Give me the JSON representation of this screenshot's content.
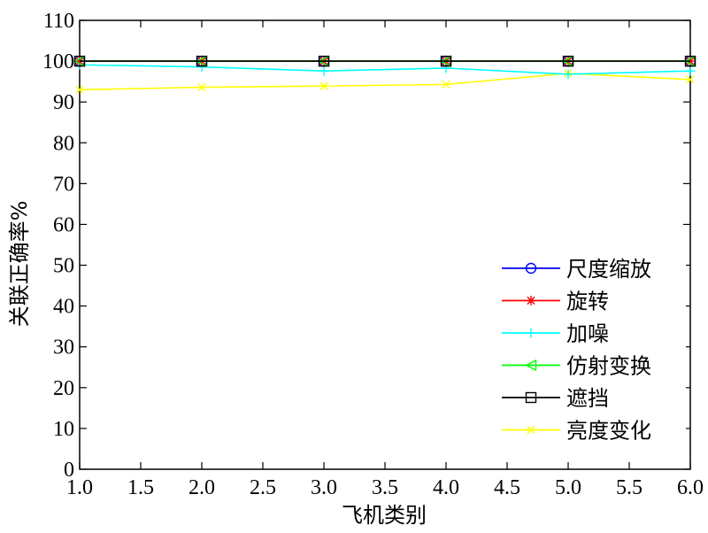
{
  "chart_data": {
    "type": "line",
    "xlabel": "飞机类别",
    "ylabel": "关联正确率%",
    "xlim": [
      1.0,
      6.0
    ],
    "ylim": [
      0,
      110
    ],
    "xticks": [
      "1.0",
      "1.5",
      "2.0",
      "2.5",
      "3.0",
      "3.5",
      "4.0",
      "4.5",
      "5.0",
      "5.5",
      "6.0"
    ],
    "yticks": [
      "0",
      "10",
      "20",
      "30",
      "40",
      "50",
      "60",
      "70",
      "80",
      "90",
      "100",
      "110"
    ],
    "legend_position": "bottom-right",
    "grid": false,
    "x": [
      1,
      2,
      3,
      4,
      5,
      6
    ],
    "series": [
      {
        "name": "尺度缩放",
        "color": "#0000ff",
        "marker": "circle",
        "values": [
          100,
          100,
          100,
          100,
          100,
          100
        ]
      },
      {
        "name": "旋转",
        "color": "#ff0000",
        "marker": "star",
        "values": [
          100,
          100,
          100,
          100,
          100,
          100
        ]
      },
      {
        "name": "加噪",
        "color": "#00ffff",
        "marker": "plus",
        "values": [
          99.1,
          98.6,
          97.6,
          98.3,
          96.8,
          97.6
        ]
      },
      {
        "name": "仿射变换",
        "color": "#00ff00",
        "marker": "triangle-left",
        "values": [
          100,
          100,
          100,
          100,
          100,
          100
        ]
      },
      {
        "name": "遮挡",
        "color": "#000000",
        "marker": "square",
        "values": [
          100,
          100,
          100,
          100,
          100,
          100
        ]
      },
      {
        "name": "亮度变化",
        "color": "#ffff00",
        "marker": "x",
        "values": [
          93.0,
          93.6,
          93.9,
          94.3,
          97.0,
          95.5
        ]
      }
    ]
  }
}
